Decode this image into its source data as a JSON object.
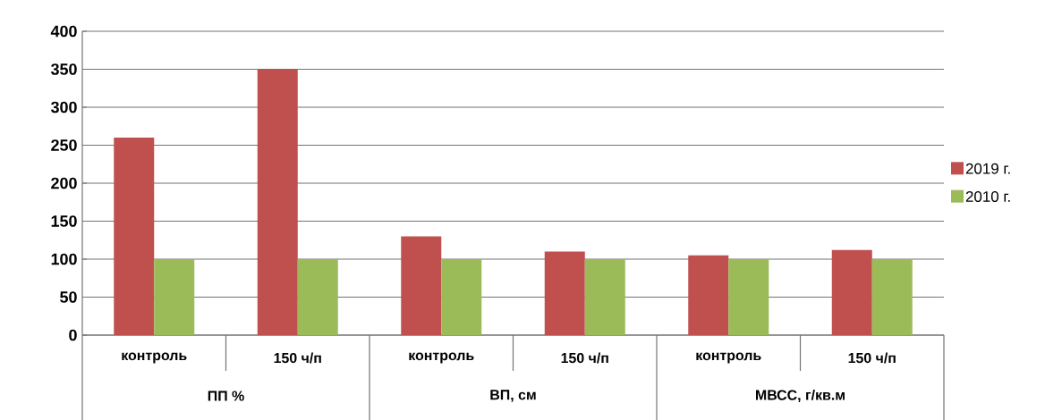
{
  "chart_data": {
    "type": "bar",
    "categories": [
      "контроль",
      "150 ч/п",
      "контроль",
      "150 ч/п",
      "контроль",
      "150 ч/п"
    ],
    "series": [
      {
        "name": "2019 г.",
        "color": "#c0504d",
        "values": [
          260,
          350,
          130,
          110,
          105,
          112
        ]
      },
      {
        "name": "2010 г.",
        "color": "#9bbb59",
        "values": [
          100,
          100,
          100,
          100,
          100,
          100
        ]
      }
    ],
    "annotations": [
      "ПП %",
      "ВП, см",
      "МВСС, г/кв.м"
    ],
    "ylim": [
      0,
      400
    ],
    "yticks": [
      0,
      50,
      100,
      150,
      200,
      250,
      300,
      350,
      400
    ],
    "grid": "y",
    "legend": "right"
  }
}
